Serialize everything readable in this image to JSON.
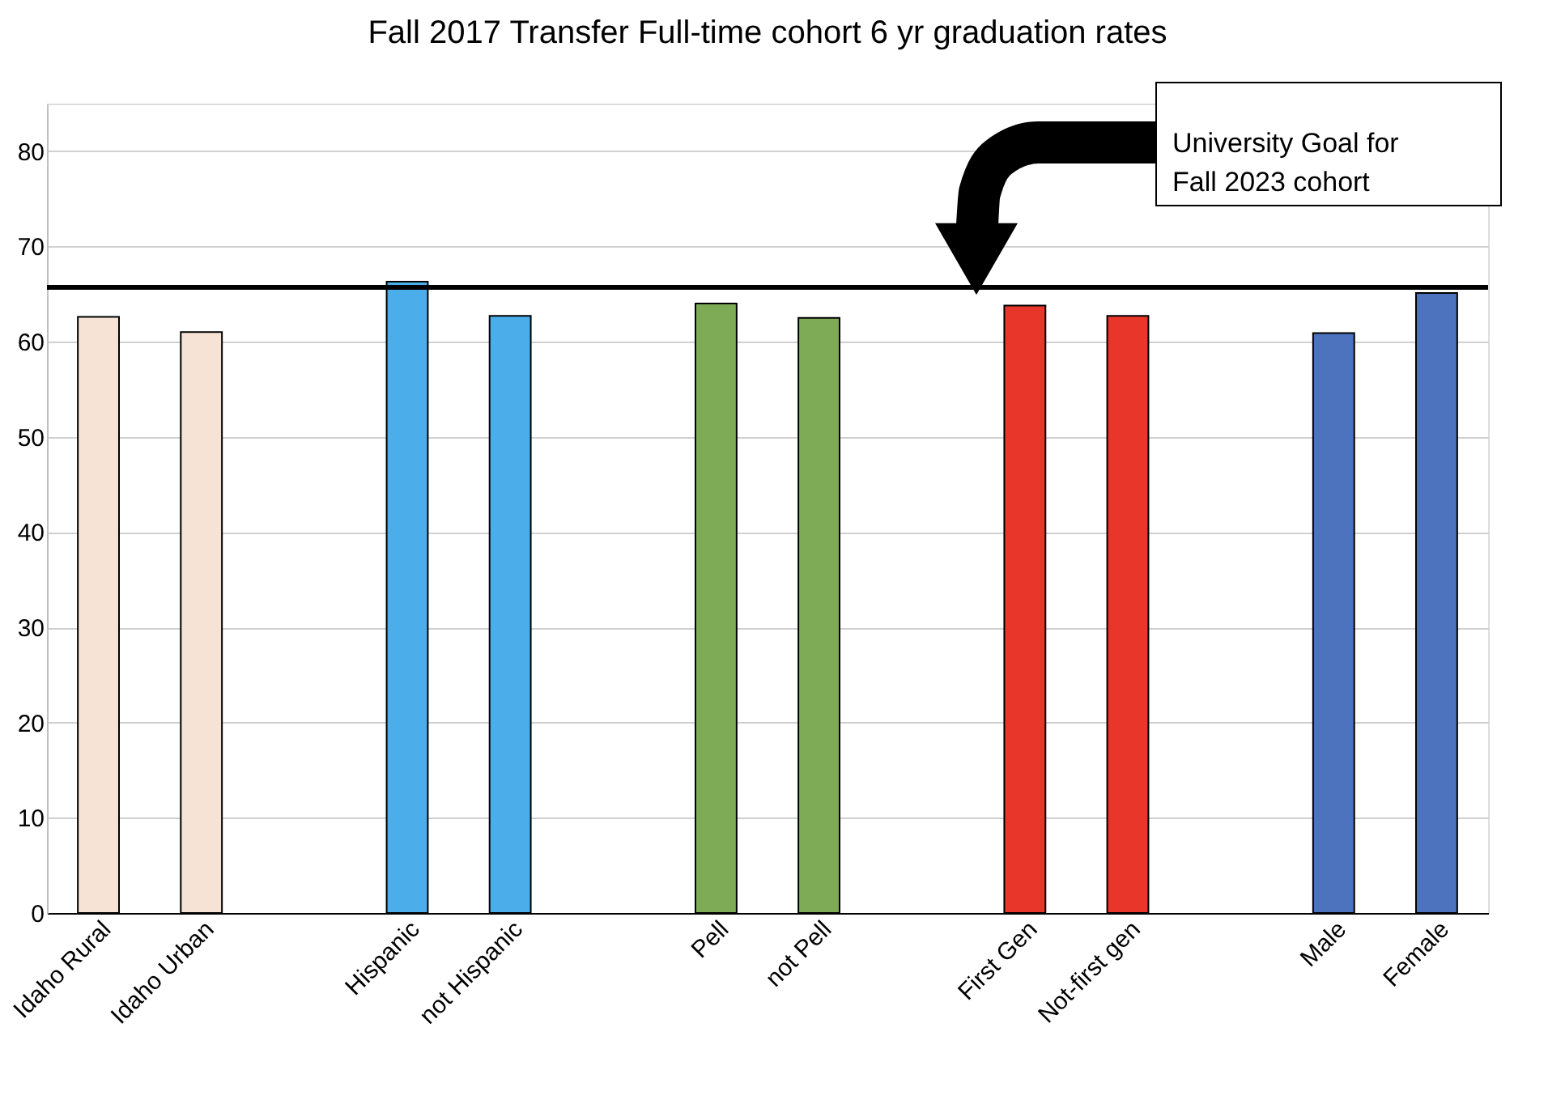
{
  "chart_data": {
    "type": "bar",
    "title": "Fall 2017 Transfer Full-time cohort 6 yr graduation rates",
    "categories": [
      "Idaho Rural",
      "Idaho Urban",
      null,
      "Hispanic",
      "not Hispanic",
      null,
      "Pell",
      "not Pell",
      null,
      "First Gen",
      "Not-first gen",
      null,
      "Male",
      "Female"
    ],
    "values": [
      62.6,
      61.0,
      null,
      66.3,
      62.7,
      null,
      64.0,
      62.5,
      null,
      63.8,
      62.7,
      null,
      60.9,
      65.1
    ],
    "colors": [
      "#f6e3d6",
      "#f6e3d6",
      null,
      "#4baeea",
      "#4baeea",
      null,
      "#7eab55",
      "#7eab55",
      null,
      "#e8372a",
      "#e8372a",
      null,
      "#4d73be",
      "#4d73be"
    ],
    "ylim": [
      0,
      85
    ],
    "yticks": [
      0,
      10,
      20,
      30,
      40,
      50,
      60,
      70,
      80
    ],
    "grid": "y",
    "ref_lines": [
      {
        "axis": "y",
        "value": 65.7,
        "label": "University Goal for Fall 2023 cohort",
        "color": "#000000"
      }
    ]
  }
}
